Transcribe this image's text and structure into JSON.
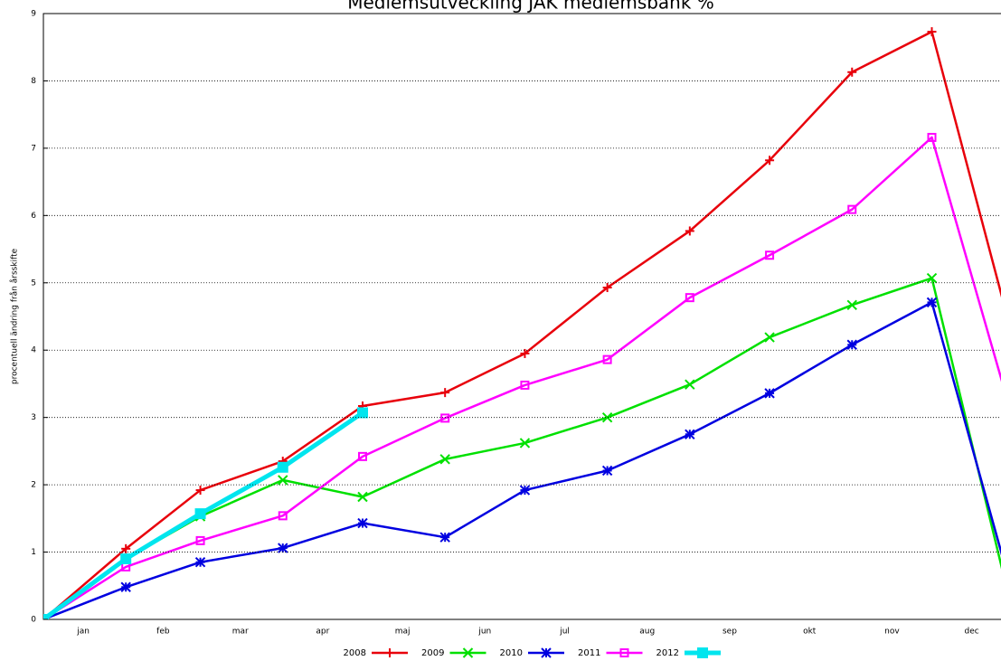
{
  "chart_data": {
    "type": "line",
    "title": "Medlemsutveckling JAK medlemsbank %",
    "y_label": "procentuell ändring från årsskifte",
    "x": [
      0,
      31,
      59,
      90,
      120,
      151,
      181,
      212,
      243,
      273,
      304,
      334,
      365
    ],
    "xlim": [
      0,
      360
    ],
    "xticks": [
      {
        "value": 15,
        "label": "jan"
      },
      {
        "value": 45,
        "label": "feb"
      },
      {
        "value": 74,
        "label": "mar"
      },
      {
        "value": 105,
        "label": "apr"
      },
      {
        "value": 135,
        "label": "maj"
      },
      {
        "value": 166,
        "label": "jun"
      },
      {
        "value": 196,
        "label": "jul"
      },
      {
        "value": 227,
        "label": "aug"
      },
      {
        "value": 258,
        "label": "sep"
      },
      {
        "value": 288,
        "label": "okt"
      },
      {
        "value": 319,
        "label": "nov"
      },
      {
        "value": 349,
        "label": "dec"
      }
    ],
    "ylim": [
      0,
      9
    ],
    "yticks": [
      0,
      1,
      2,
      3,
      4,
      5,
      6,
      7,
      8,
      9
    ],
    "grid": true,
    "legend": "bottom",
    "series": [
      {
        "name": "2008",
        "color": "#e8000b",
        "marker": "plus",
        "values": [
          0,
          1.05,
          1.92,
          2.35,
          3.17,
          3.37,
          3.95,
          4.93,
          5.77,
          6.82,
          8.13,
          8.73,
          4.1
        ]
      },
      {
        "name": "2009",
        "color": "#00e000",
        "marker": "cross",
        "values": [
          0,
          0.9,
          1.53,
          2.07,
          1.82,
          2.38,
          2.62,
          3.0,
          3.49,
          4.19,
          4.67,
          5.07,
          0
        ]
      },
      {
        "name": "2010",
        "color": "#0000e0",
        "marker": "star",
        "values": [
          0,
          0.48,
          0.85,
          1.06,
          1.43,
          1.22,
          1.92,
          2.21,
          2.75,
          3.36,
          4.08,
          4.71,
          0.3
        ]
      },
      {
        "name": "2011",
        "color": "#ff00ff",
        "marker": "square",
        "values": [
          0,
          0.78,
          1.17,
          1.54,
          2.42,
          2.99,
          3.48,
          3.86,
          4.78,
          5.41,
          6.09,
          7.16,
          2.9
        ]
      },
      {
        "name": "2012",
        "color": "#00e5ee",
        "marker": "filled-square",
        "values": [
          0,
          0.9,
          1.57,
          2.26,
          3.07,
          null,
          null,
          null,
          null,
          null,
          null,
          null,
          null
        ]
      }
    ]
  }
}
